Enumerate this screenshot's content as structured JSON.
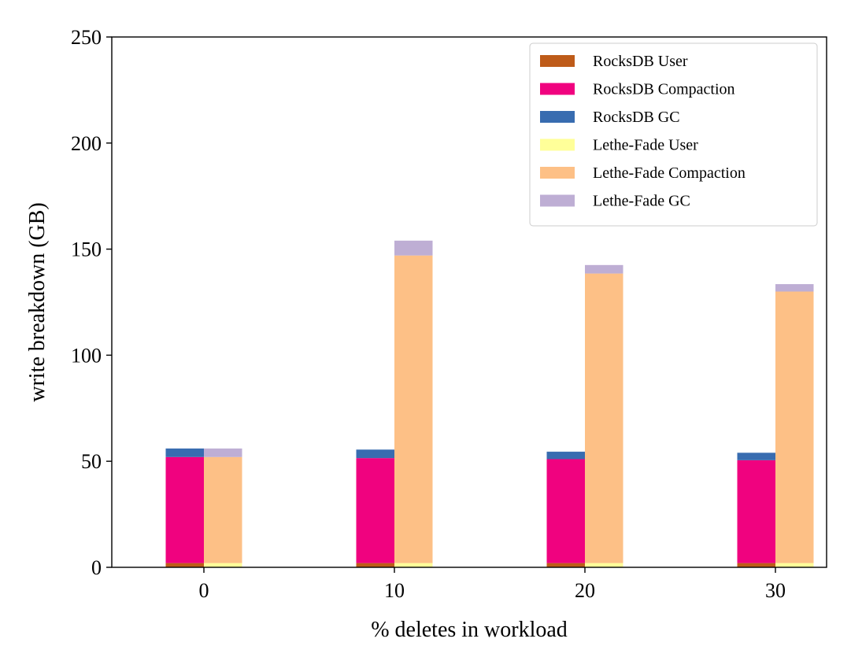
{
  "chart_data": {
    "type": "bar",
    "stacked": true,
    "grouped": true,
    "title": "",
    "xlabel": "% deletes in workload",
    "ylabel": "write breakdown (GB)",
    "ylim": [
      0,
      250
    ],
    "yticks": [
      0,
      50,
      100,
      150,
      200,
      250
    ],
    "categories": [
      "0",
      "10",
      "20",
      "30"
    ],
    "legend_position": "top-right",
    "groups": [
      {
        "name": "RocksDB",
        "series": [
          {
            "name": "RocksDB User",
            "color": "#be5b19",
            "values": [
              2,
              2,
              2,
              2
            ]
          },
          {
            "name": "RocksDB Compaction",
            "color": "#f0027f",
            "values": [
              50,
              49.5,
              49,
              48.5
            ]
          },
          {
            "name": "RocksDB GC",
            "color": "#386cb0",
            "values": [
              4,
              4,
              3.5,
              3.5
            ]
          }
        ]
      },
      {
        "name": "Lethe-Fade",
        "series": [
          {
            "name": "Lethe-Fade User",
            "color": "#ffff99",
            "values": [
              2,
              2,
              2,
              2
            ]
          },
          {
            "name": "Lethe-Fade Compaction",
            "color": "#fdc086",
            "values": [
              50,
              145,
              136.5,
              128
            ]
          },
          {
            "name": "Lethe-Fade GC",
            "color": "#beaed4",
            "values": [
              4,
              7,
              4,
              3.5
            ]
          }
        ]
      }
    ]
  }
}
